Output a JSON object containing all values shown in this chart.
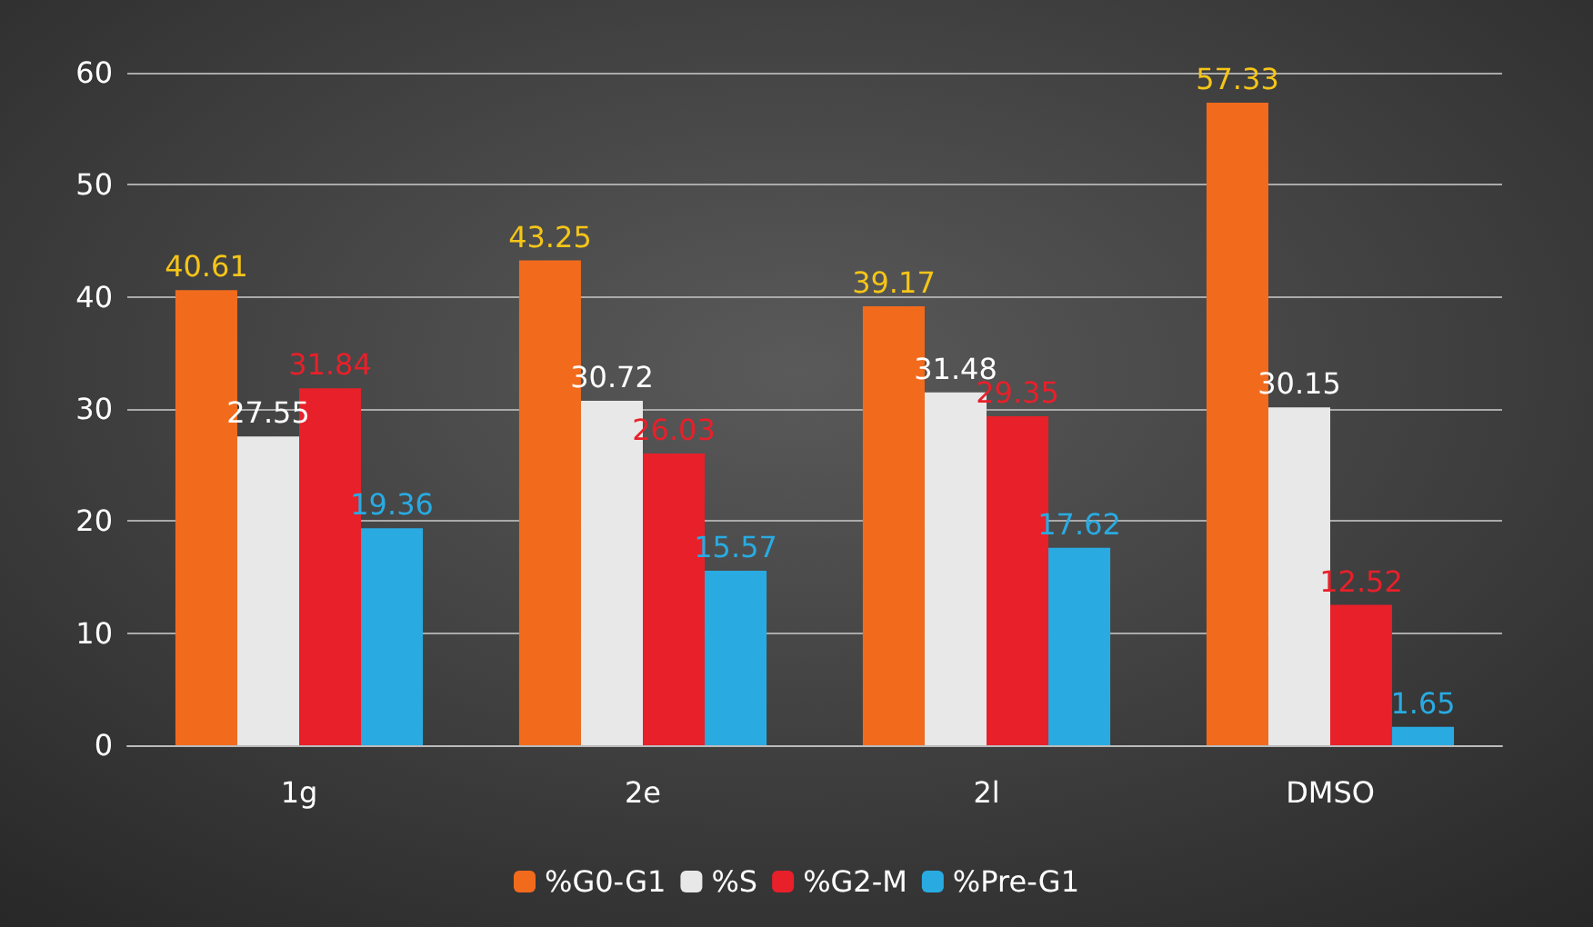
{
  "chart_data": {
    "type": "bar",
    "categories": [
      "1g",
      "2e",
      "2l",
      "DMSO"
    ],
    "series": [
      {
        "name": "%G0-G1",
        "color": "#f26b1d",
        "values": [
          40.61,
          43.25,
          39.17,
          57.33
        ]
      },
      {
        "name": "%S",
        "color": "#e8e8e8",
        "values": [
          27.55,
          30.72,
          31.48,
          30.15
        ]
      },
      {
        "name": "%G2-M",
        "color": "#e8202a",
        "values": [
          31.84,
          26.03,
          29.35,
          12.52
        ]
      },
      {
        "name": "%Pre-G1",
        "color": "#29abe2",
        "values": [
          19.36,
          15.57,
          17.62,
          1.65
        ]
      }
    ],
    "ylim": [
      0,
      60
    ],
    "yticks": [
      0,
      10,
      20,
      30,
      40,
      50,
      60
    ],
    "grid": "y",
    "legend": "bottom",
    "data_labels": true
  }
}
